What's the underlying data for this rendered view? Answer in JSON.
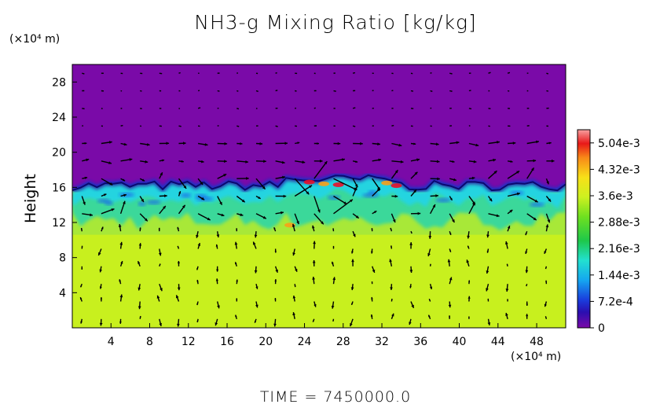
{
  "chart_data": {
    "type": "heatmap",
    "title": "NH3-g Mixing Ratio [kg/kg]",
    "xlabel": "",
    "x_unit": "(×10⁴ m)",
    "ylabel": "Height",
    "y_unit": "(×10⁴ m)",
    "xlim": [
      0,
      51
    ],
    "ylim": [
      0,
      30
    ],
    "x_ticks": [
      "4",
      "8",
      "12",
      "16",
      "20",
      "24",
      "28",
      "32",
      "36",
      "40",
      "44",
      "48"
    ],
    "x_tick_values": [
      4,
      8,
      12,
      16,
      20,
      24,
      28,
      32,
      36,
      40,
      44,
      48
    ],
    "y_ticks": [
      "4",
      "8",
      "12",
      "16",
      "20",
      "24",
      "28"
    ],
    "y_tick_values": [
      4,
      8,
      12,
      16,
      20,
      24,
      28
    ],
    "colorbar": {
      "min": 0,
      "max": 0.0054,
      "tick_labels": [
        "0",
        "7.2e-4",
        "1.44e-3",
        "2.16e-3",
        "2.88e-3",
        "3.6e-3",
        "4.32e-3",
        "5.04e-3"
      ],
      "tick_values": [
        0,
        0.00072,
        0.00144,
        0.00216,
        0.00288,
        0.0036,
        0.00432,
        0.00504
      ]
    },
    "field_summary": [
      {
        "region": "surface to ~11",
        "value": 0.0033
      },
      {
        "region": "~11 to ~16 (mixed layer)",
        "value": 0.0022
      },
      {
        "region": "~16 to ~17.5 (top edge)",
        "value": 0.0008
      },
      {
        "region": "above ~17.5",
        "value": 0
      }
    ],
    "has_wind_vectors": true,
    "time_label": "TIME =  7450000.0"
  },
  "colors": {
    "background": "#7a0aa8",
    "surface_layer": "#c8f01e",
    "mixed_layer": "#3ad89a",
    "edge": "#1830c8",
    "peak": "#e8102a"
  }
}
